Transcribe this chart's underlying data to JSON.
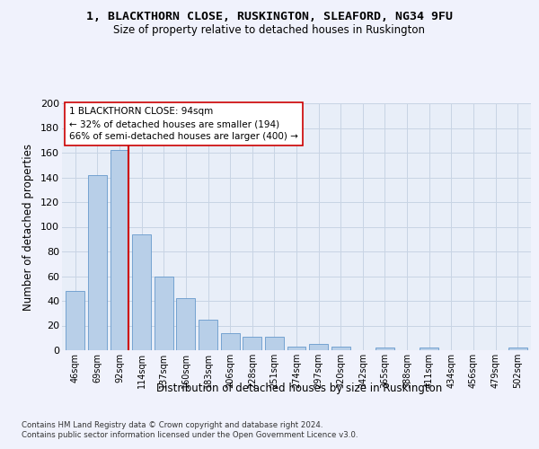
{
  "title": "1, BLACKTHORN CLOSE, RUSKINGTON, SLEAFORD, NG34 9FU",
  "subtitle": "Size of property relative to detached houses in Ruskington",
  "xlabel": "Distribution of detached houses by size in Ruskington",
  "ylabel": "Number of detached properties",
  "bar_fill_color": "#b8cfe8",
  "bar_edge_color": "#6699cc",
  "grid_color": "#c8d4e4",
  "bg_color": "#e8eef8",
  "fig_bg_color": "#f0f2fc",
  "categories": [
    "46sqm",
    "69sqm",
    "92sqm",
    "114sqm",
    "137sqm",
    "160sqm",
    "183sqm",
    "206sqm",
    "228sqm",
    "251sqm",
    "274sqm",
    "297sqm",
    "320sqm",
    "342sqm",
    "365sqm",
    "388sqm",
    "411sqm",
    "434sqm",
    "456sqm",
    "479sqm",
    "502sqm"
  ],
  "values": [
    48,
    142,
    162,
    94,
    60,
    42,
    25,
    14,
    11,
    11,
    3,
    5,
    3,
    0,
    2,
    0,
    2,
    0,
    0,
    0,
    2
  ],
  "ylim": [
    0,
    200
  ],
  "yticks": [
    0,
    20,
    40,
    60,
    80,
    100,
    120,
    140,
    160,
    180,
    200
  ],
  "property_bar_index": 2,
  "vline_color": "#cc0000",
  "annotation_line1": "1 BLACKTHORN CLOSE: 94sqm",
  "annotation_line2": "← 32% of detached houses are smaller (194)",
  "annotation_line3": "66% of semi-detached houses are larger (400) →",
  "footer1": "Contains HM Land Registry data © Crown copyright and database right 2024.",
  "footer2": "Contains public sector information licensed under the Open Government Licence v3.0."
}
